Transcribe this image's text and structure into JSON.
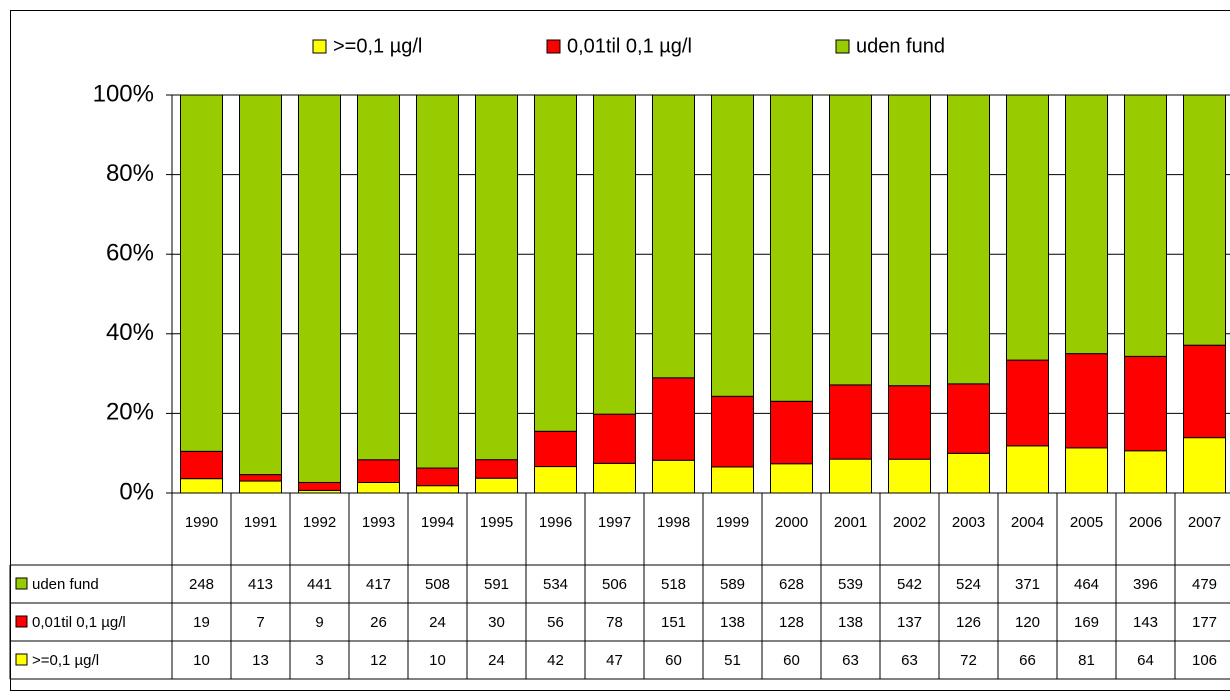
{
  "chart_data": {
    "type": "bar",
    "stacking": "percent",
    "categories": [
      "1990",
      "1991",
      "1992",
      "1993",
      "1994",
      "1995",
      "1996",
      "1997",
      "1998",
      "1999",
      "2000",
      "2001",
      "2002",
      "2003",
      "2004",
      "2005",
      "2006",
      "2007"
    ],
    "series": [
      {
        "name": ">=0,1 µg/l",
        "color": "#ffff00",
        "values": [
          10,
          13,
          3,
          12,
          10,
          24,
          42,
          47,
          60,
          51,
          60,
          63,
          63,
          72,
          66,
          81,
          64,
          106
        ]
      },
      {
        "name": "0,01til 0,1 µg/l",
        "color": "#ff0000",
        "values": [
          19,
          7,
          9,
          26,
          24,
          30,
          56,
          78,
          151,
          138,
          128,
          138,
          137,
          126,
          120,
          169,
          143,
          177
        ]
      },
      {
        "name": "uden fund",
        "color": "#99cc00",
        "values": [
          248,
          413,
          441,
          417,
          508,
          591,
          534,
          506,
          518,
          589,
          628,
          539,
          542,
          524,
          371,
          464,
          396,
          479
        ]
      }
    ],
    "ylim": [
      0,
      100
    ],
    "yticks": [
      {
        "value": 0,
        "label": "0%"
      },
      {
        "value": 20,
        "label": "20%"
      },
      {
        "value": 40,
        "label": "40%"
      },
      {
        "value": 60,
        "label": "60%"
      },
      {
        "value": 80,
        "label": "80%"
      },
      {
        "value": 100,
        "label": "100%"
      }
    ],
    "grid": true,
    "legend": "top",
    "data_table": true
  }
}
